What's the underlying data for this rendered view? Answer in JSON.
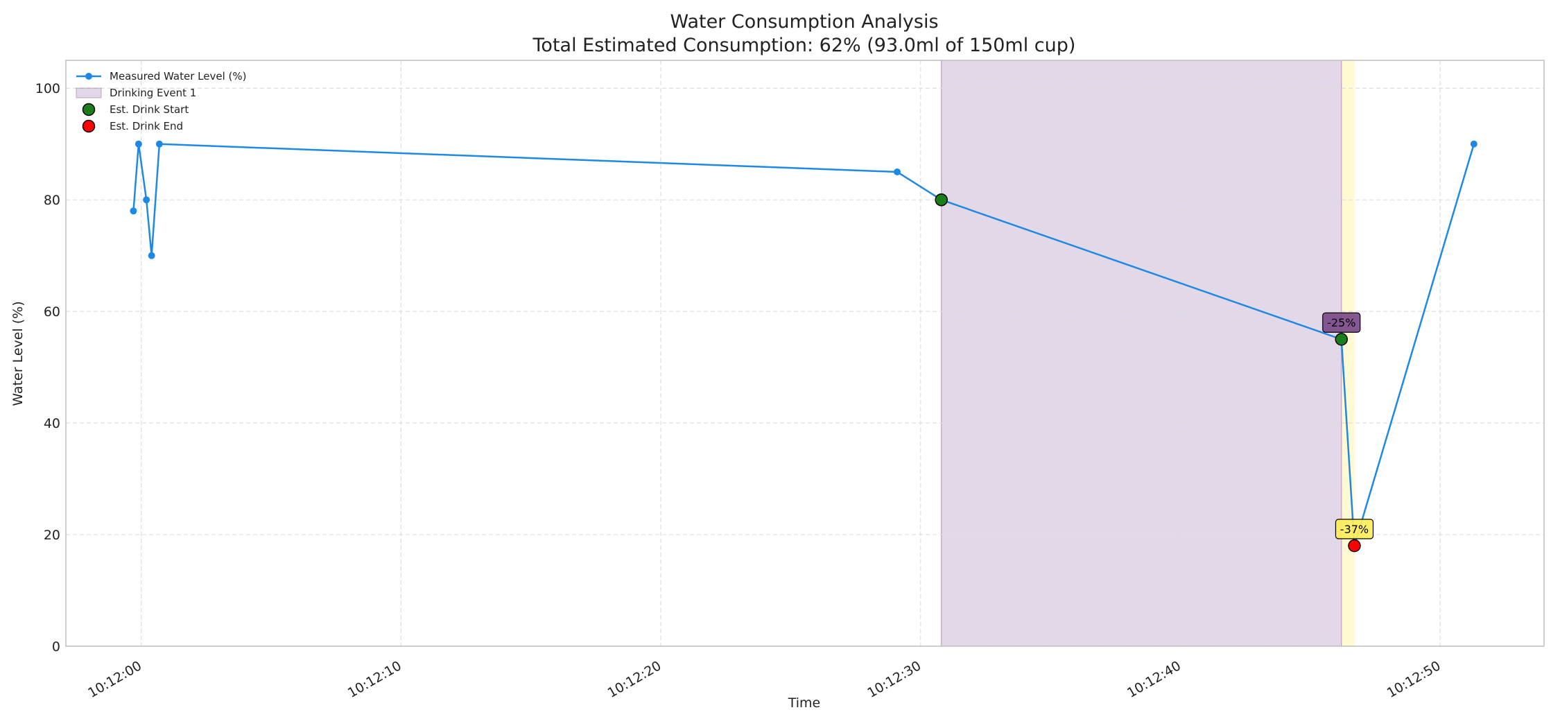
{
  "chart_data": {
    "type": "line",
    "title": "Water Consumption Analysis",
    "subtitle": "Total Estimated Consumption: 62% (93.0ml of 150ml cup)",
    "xlabel": "Time",
    "ylabel": "Water Level (%)",
    "xlim": [
      "10:11:57.1",
      "10:12:54.0"
    ],
    "ylim": [
      0,
      105
    ],
    "x_ticks": [
      "10:12:00",
      "10:12:10",
      "10:12:20",
      "10:12:30",
      "10:12:40",
      "10:12:50"
    ],
    "y_ticks": [
      0,
      20,
      40,
      60,
      80,
      100
    ],
    "grid": true,
    "legend_position": "top-left",
    "series": [
      {
        "name": "Measured Water Level (%)",
        "color": "#1e88e5",
        "x": [
          "10:11:59.7",
          "10:11:59.9",
          "10:12:00.2",
          "10:12:00.4",
          "10:12:00.7",
          "10:12:29.1",
          "10:12:30.8",
          "10:12:46.2",
          "10:12:46.7",
          "10:12:51.3"
        ],
        "y": [
          78,
          90,
          80,
          70,
          90,
          85,
          80,
          55,
          18,
          90
        ]
      }
    ],
    "shaded_regions": [
      {
        "name": "Drinking Event 1",
        "x_start": "10:12:30.8",
        "x_end": "10:12:46.2",
        "color": "#9b72aa"
      },
      {
        "name": "",
        "x_start": "10:12:46.2",
        "x_end": "10:12:46.7",
        "color": "#fff59d"
      }
    ],
    "markers": {
      "start": {
        "name": "Est. Drink Start",
        "color": "#1a7f1a",
        "points": [
          {
            "x": "10:12:30.8",
            "y": 80
          },
          {
            "x": "10:12:46.2",
            "y": 55
          }
        ]
      },
      "end": {
        "name": "Est. Drink End",
        "color": "#ff0000",
        "points": [
          {
            "x": "10:12:46.7",
            "y": 18
          }
        ]
      }
    },
    "annotations": [
      {
        "text": "-25%",
        "x": "10:12:46.2",
        "y": 58,
        "bg": "#7b4a8a"
      },
      {
        "text": "-37%",
        "x": "10:12:46.7",
        "y": 21,
        "bg": "#ffee58"
      }
    ]
  }
}
